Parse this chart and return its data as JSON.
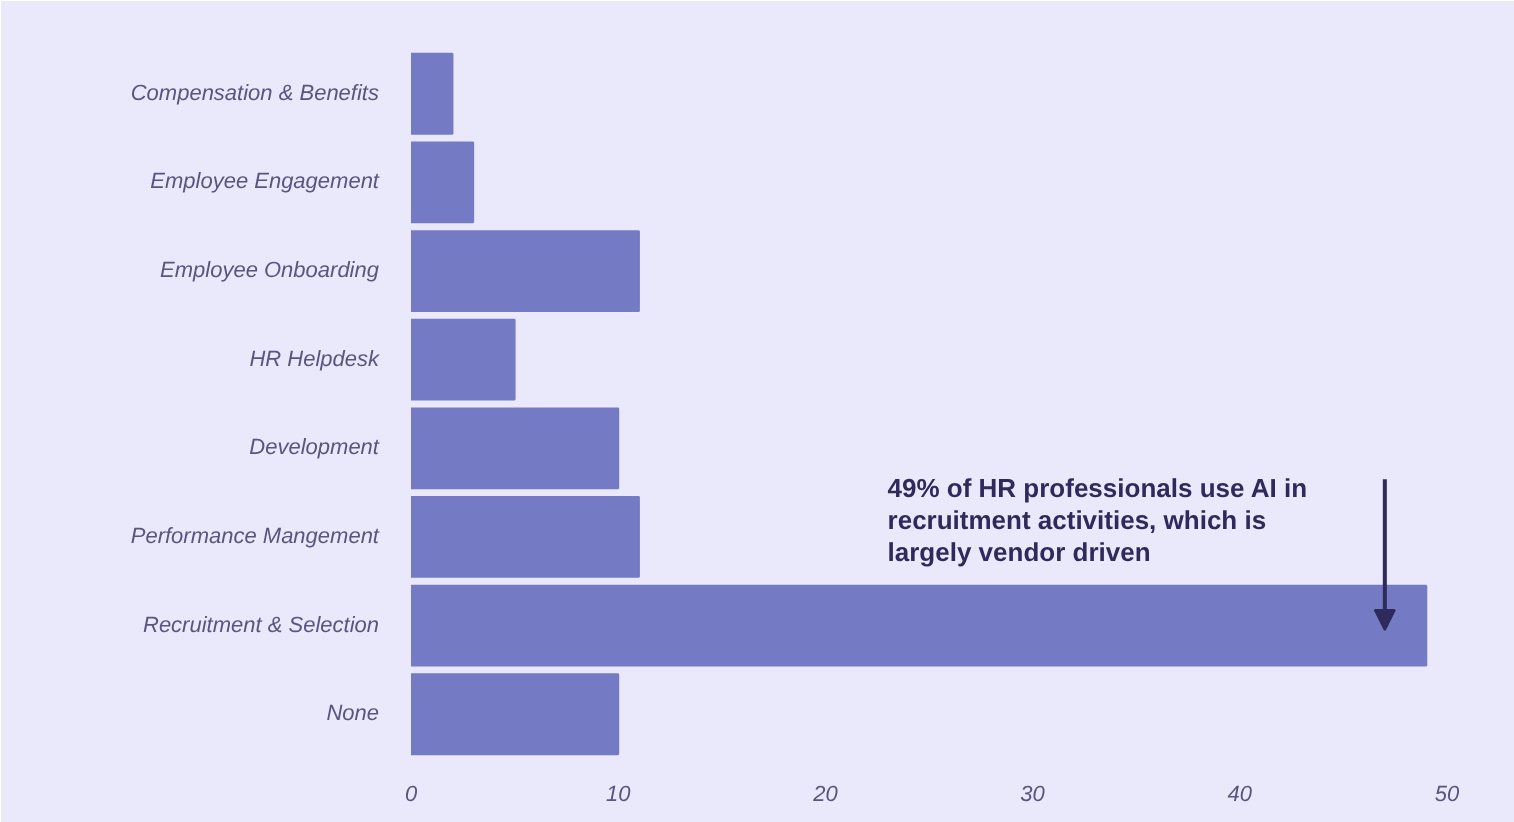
{
  "chart_data": {
    "type": "bar",
    "orientation": "horizontal",
    "categories": [
      "Compensation & Benefits",
      "Employee Engagement",
      "Employee Onboarding",
      "HR Helpdesk",
      "Development",
      "Performance Mangement",
      "Recruitment & Selection",
      "None"
    ],
    "values": [
      2,
      3,
      11,
      5,
      10,
      11,
      49,
      10
    ],
    "color": "#747bc4",
    "xlim": [
      0,
      50
    ],
    "xticks": [
      0,
      10,
      20,
      30,
      40,
      50
    ],
    "grid": false,
    "annotations": [
      "49% of HR professionals use AI in recruitment activities, which is largely vendor driven"
    ]
  }
}
